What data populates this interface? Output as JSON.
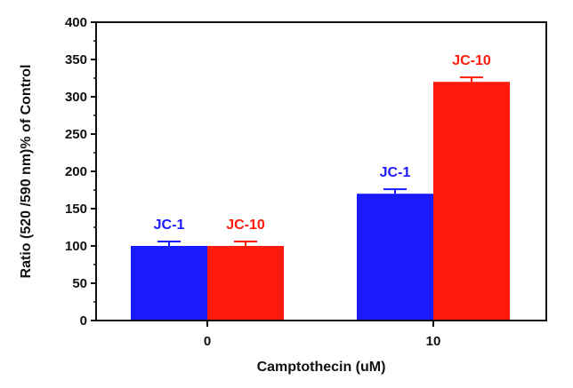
{
  "chart_data": {
    "type": "bar",
    "categories": [
      "0",
      "10"
    ],
    "series": [
      {
        "name": "JC-1",
        "color": "#1a1aff",
        "values": [
          100,
          170
        ],
        "errors": [
          6,
          6
        ],
        "labels": [
          "JC-1",
          "JC-1"
        ]
      },
      {
        "name": "JC-10",
        "color": "#ff1a0d",
        "values": [
          100,
          320
        ],
        "errors": [
          6,
          6
        ],
        "labels": [
          "JC-10",
          "JC-10"
        ]
      }
    ],
    "xlabel": "Camptothecin (uM)",
    "ylabel": "Ratio (520 /590 nm)% of Control",
    "ylim": [
      0,
      400
    ],
    "yticks": [
      "0",
      "50",
      "100",
      "150",
      "200",
      "250",
      "300",
      "350",
      "400"
    ],
    "grid": false,
    "legend": "none (labels above bars)"
  }
}
